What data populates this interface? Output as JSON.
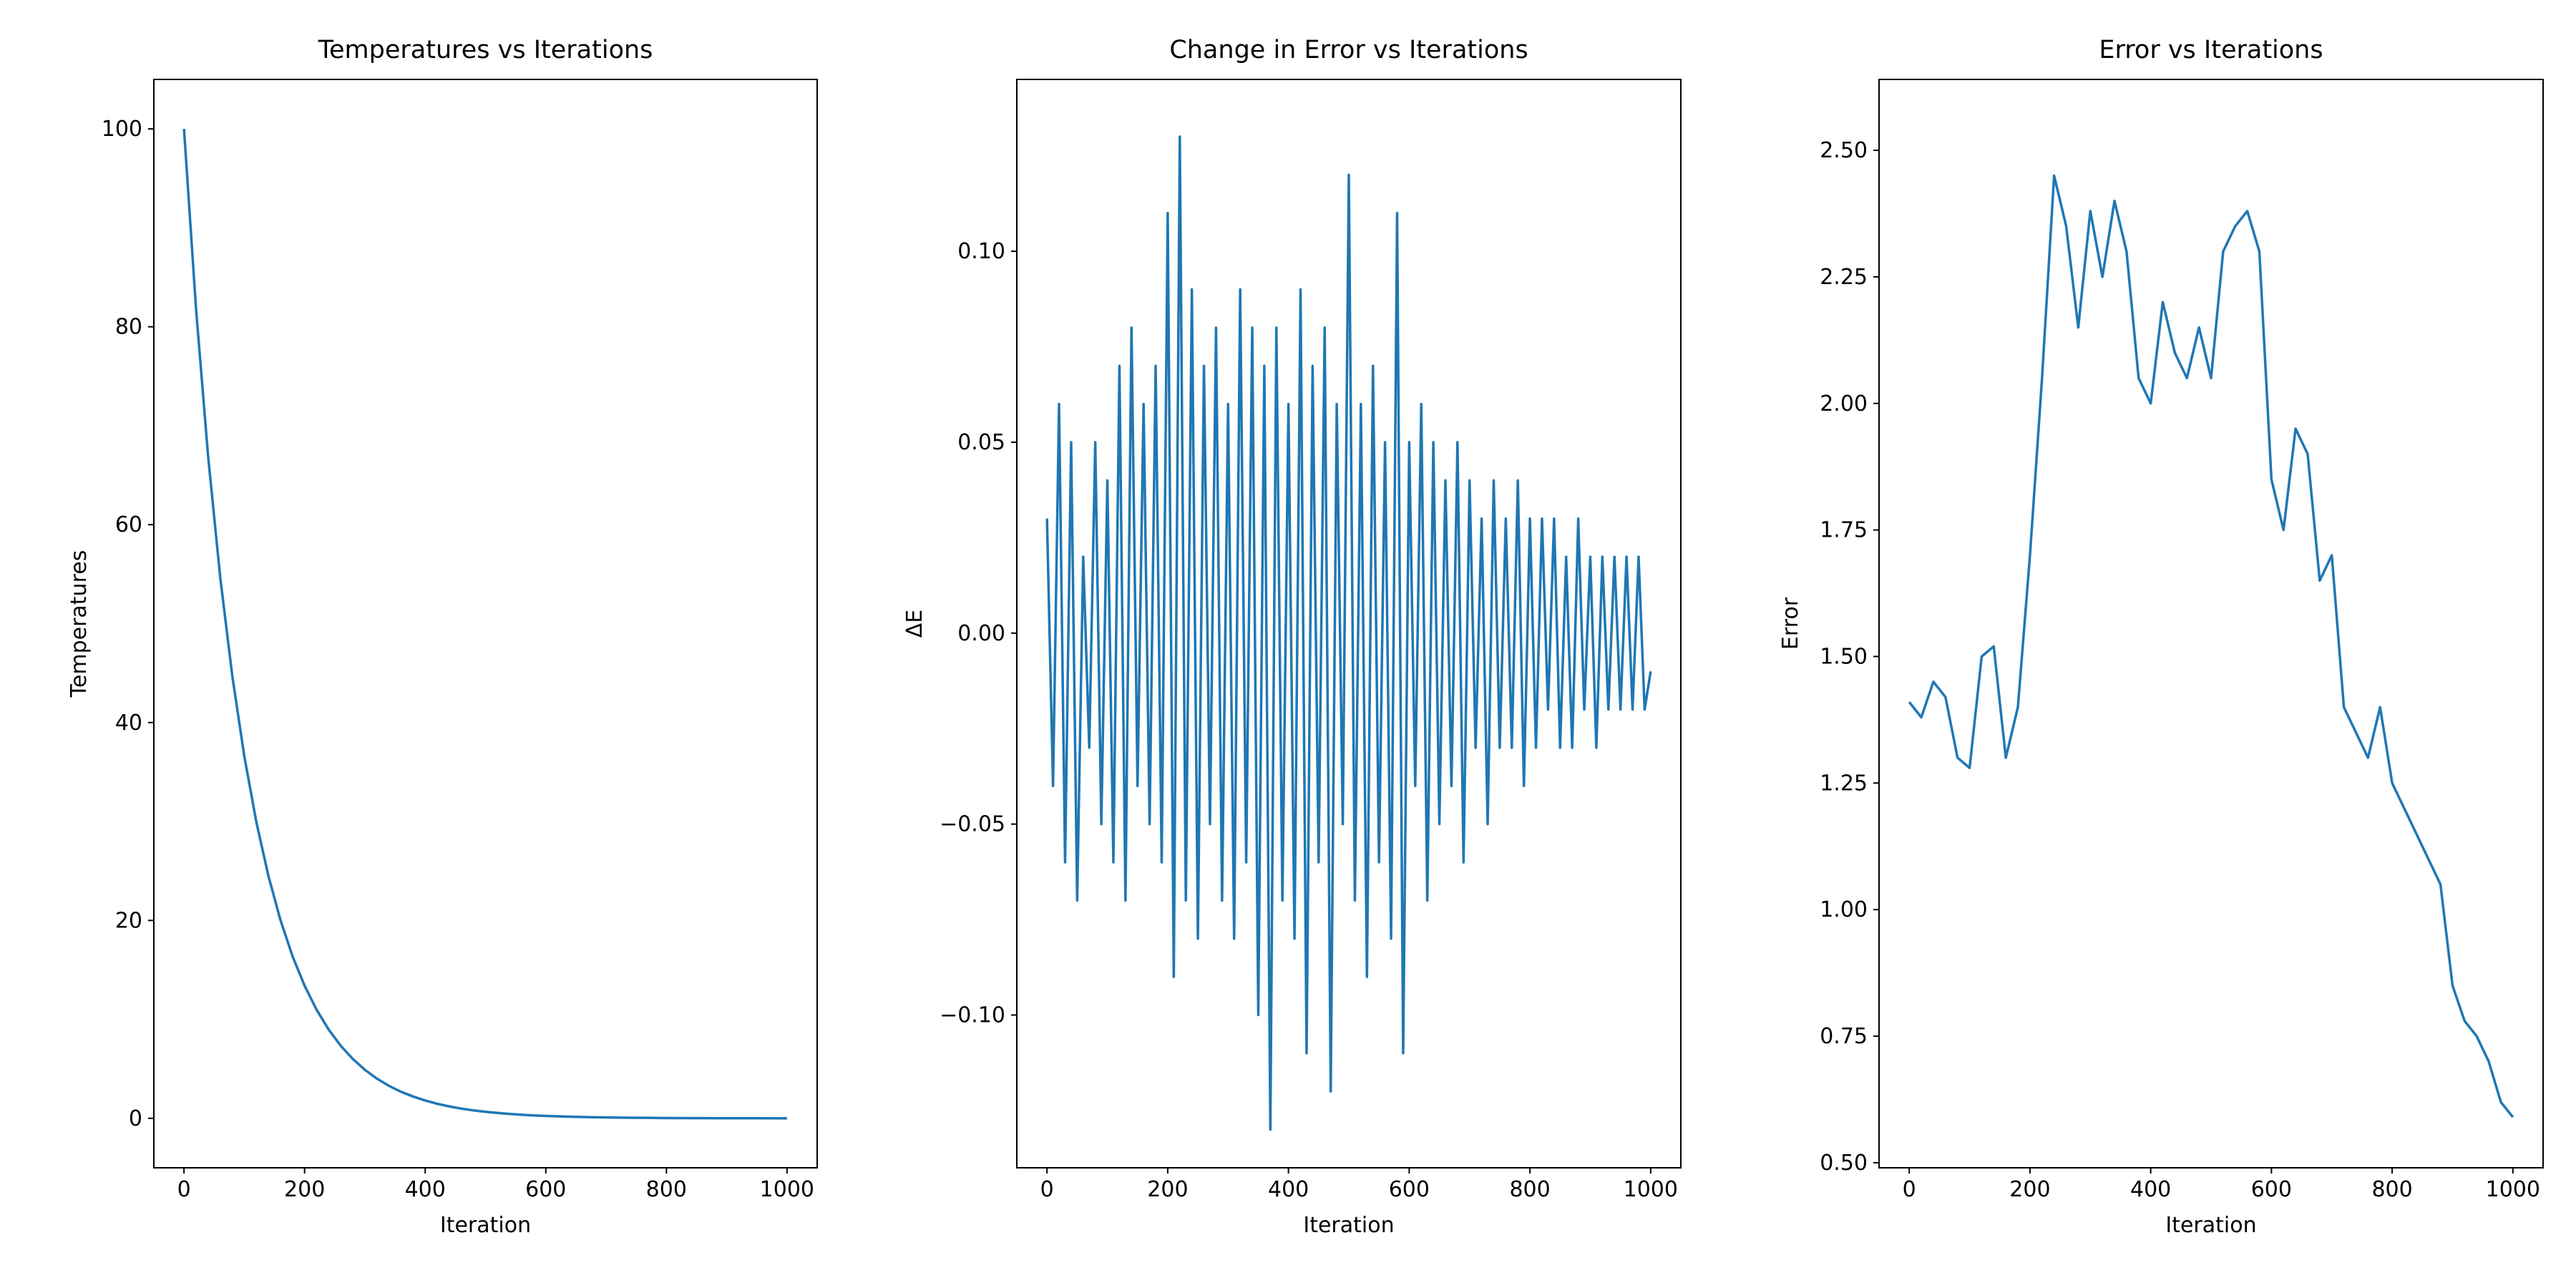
{
  "chart_data": [
    {
      "type": "line",
      "title": "Temperatures vs Iterations",
      "x_label": "Iteration",
      "y_label": "Temperatures",
      "color": "#1f77b4",
      "x": [
        0,
        20,
        40,
        60,
        80,
        100,
        120,
        140,
        160,
        180,
        200,
        220,
        240,
        260,
        280,
        300,
        320,
        340,
        360,
        380,
        400,
        420,
        440,
        460,
        480,
        500,
        520,
        540,
        560,
        580,
        600,
        640,
        680,
        720,
        760,
        800,
        850,
        900,
        950,
        1000
      ],
      "values": [
        100,
        81.79,
        66.9,
        54.72,
        44.75,
        36.6,
        29.94,
        24.49,
        20.03,
        16.38,
        13.4,
        10.96,
        8.96,
        7.33,
        6.0,
        4.9,
        4.01,
        3.28,
        2.68,
        2.2,
        1.8,
        1.47,
        1.2,
        0.98,
        0.8,
        0.66,
        0.54,
        0.44,
        0.36,
        0.29,
        0.24,
        0.16,
        0.11,
        0.07,
        0.05,
        0.03,
        0.02,
        0.01,
        0.01,
        0.0
      ],
      "xlim": [
        -50,
        1050
      ],
      "ylim": [
        -5,
        105
      ],
      "xticks": [
        0,
        200,
        400,
        600,
        800,
        1000
      ],
      "yticks": [
        0,
        20,
        40,
        60,
        80,
        100
      ]
    },
    {
      "type": "line",
      "title": "Change in Error vs Iterations",
      "x_label": "Iteration",
      "y_label": "ΔE",
      "color": "#1f77b4",
      "x": [
        0,
        10,
        20,
        30,
        40,
        50,
        60,
        70,
        80,
        90,
        100,
        110,
        120,
        130,
        140,
        150,
        160,
        170,
        180,
        190,
        200,
        210,
        220,
        230,
        240,
        250,
        260,
        270,
        280,
        290,
        300,
        310,
        320,
        330,
        340,
        350,
        360,
        370,
        380,
        390,
        400,
        410,
        420,
        430,
        440,
        450,
        460,
        470,
        480,
        490,
        500,
        510,
        520,
        530,
        540,
        550,
        560,
        570,
        580,
        590,
        600,
        610,
        620,
        630,
        640,
        650,
        660,
        670,
        680,
        690,
        700,
        710,
        720,
        730,
        740,
        750,
        760,
        770,
        780,
        790,
        800,
        810,
        820,
        830,
        840,
        850,
        860,
        870,
        880,
        890,
        900,
        910,
        920,
        930,
        940,
        950,
        960,
        970,
        980,
        990,
        1000
      ],
      "values": [
        0.03,
        -0.04,
        0.06,
        -0.06,
        0.05,
        -0.07,
        0.02,
        -0.03,
        0.05,
        -0.05,
        0.04,
        -0.06,
        0.07,
        -0.07,
        0.08,
        -0.04,
        0.06,
        -0.05,
        0.07,
        -0.06,
        0.11,
        -0.09,
        0.13,
        -0.07,
        0.09,
        -0.08,
        0.07,
        -0.05,
        0.08,
        -0.07,
        0.06,
        -0.08,
        0.09,
        -0.06,
        0.08,
        -0.1,
        0.07,
        -0.13,
        0.08,
        -0.07,
        0.06,
        -0.08,
        0.09,
        -0.11,
        0.07,
        -0.06,
        0.08,
        -0.12,
        0.06,
        -0.05,
        0.12,
        -0.07,
        0.06,
        -0.09,
        0.07,
        -0.06,
        0.05,
        -0.08,
        0.11,
        -0.11,
        0.05,
        -0.04,
        0.06,
        -0.07,
        0.05,
        -0.05,
        0.04,
        -0.04,
        0.05,
        -0.06,
        0.04,
        -0.03,
        0.03,
        -0.05,
        0.04,
        -0.03,
        0.03,
        -0.03,
        0.04,
        -0.04,
        0.03,
        -0.03,
        0.03,
        -0.02,
        0.03,
        -0.03,
        0.02,
        -0.03,
        0.03,
        -0.02,
        0.02,
        -0.03,
        0.02,
        -0.02,
        0.02,
        -0.02,
        0.02,
        -0.02,
        0.02,
        -0.02,
        -0.01
      ],
      "xlim": [
        -50,
        1050
      ],
      "ylim": [
        -0.14,
        0.145
      ],
      "xticks": [
        0,
        200,
        400,
        600,
        800,
        1000
      ],
      "yticks": [
        {
          "value": -0.1,
          "label": "−0.10"
        },
        {
          "value": -0.05,
          "label": "−0.05"
        },
        {
          "value": 0,
          "label": "0.00"
        },
        {
          "value": 0.05,
          "label": "0.05"
        },
        {
          "value": 0.1,
          "label": "0.10"
        }
      ]
    },
    {
      "type": "line",
      "title": "Error vs Iterations",
      "x_label": "Iteration",
      "y_label": "Error",
      "color": "#1f77b4",
      "x": [
        0,
        20,
        40,
        60,
        80,
        100,
        120,
        140,
        160,
        180,
        200,
        220,
        240,
        260,
        280,
        300,
        320,
        340,
        360,
        380,
        400,
        420,
        440,
        460,
        480,
        500,
        520,
        540,
        560,
        580,
        600,
        620,
        640,
        660,
        680,
        700,
        720,
        740,
        760,
        780,
        800,
        820,
        840,
        860,
        880,
        900,
        920,
        940,
        960,
        980,
        1000
      ],
      "values": [
        1.41,
        1.38,
        1.45,
        1.42,
        1.3,
        1.28,
        1.5,
        1.52,
        1.3,
        1.4,
        1.7,
        2.05,
        2.45,
        2.35,
        2.15,
        2.38,
        2.25,
        2.4,
        2.3,
        2.05,
        2.0,
        2.2,
        2.1,
        2.05,
        2.15,
        2.05,
        2.3,
        2.35,
        2.38,
        2.3,
        1.85,
        1.75,
        1.95,
        1.9,
        1.65,
        1.7,
        1.4,
        1.35,
        1.3,
        1.4,
        1.25,
        1.2,
        1.15,
        1.1,
        1.05,
        0.85,
        0.78,
        0.75,
        0.7,
        0.62,
        0.59
      ],
      "xlim": [
        -50,
        1050
      ],
      "ylim": [
        0.49,
        2.64
      ],
      "xticks": [
        0,
        200,
        400,
        600,
        800,
        1000
      ],
      "yticks": [
        {
          "value": 0.5,
          "label": "0.50"
        },
        {
          "value": 0.75,
          "label": "0.75"
        },
        {
          "value": 1.0,
          "label": "1.00"
        },
        {
          "value": 1.25,
          "label": "1.25"
        },
        {
          "value": 1.5,
          "label": "1.50"
        },
        {
          "value": 1.75,
          "label": "1.75"
        },
        {
          "value": 2.0,
          "label": "2.00"
        },
        {
          "value": 2.25,
          "label": "2.25"
        },
        {
          "value": 2.5,
          "label": "2.50"
        }
      ]
    }
  ]
}
